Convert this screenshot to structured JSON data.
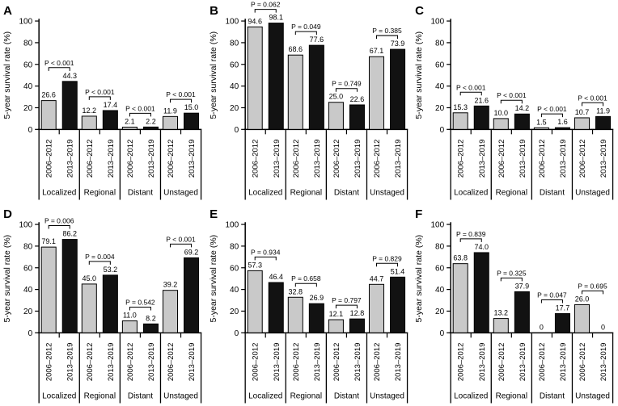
{
  "figure": {
    "ylabel": "5-year survival rate (%)",
    "ylim": [
      0,
      100
    ],
    "yticks": [
      0,
      20,
      40,
      60,
      80,
      100
    ],
    "categories": [
      "Localized",
      "Regional",
      "Distant",
      "Unstaged"
    ],
    "period_labels": [
      "2006–2012",
      "2013–2019"
    ],
    "colors": {
      "bar_2006_2012": "#c9c9c9",
      "bar_2013_2019": "#121212",
      "axis": "#000000",
      "background": "#ffffff"
    }
  },
  "chart_data": [
    {
      "type": "bar",
      "panel_label": "A",
      "ylabel": "5-year survival rate (%)",
      "ylim": [
        0,
        100
      ],
      "categories": [
        "Localized",
        "Regional",
        "Distant",
        "Unstaged"
      ],
      "series": [
        {
          "name": "2006–2012",
          "values": [
            26.6,
            12.2,
            2.1,
            11.9
          ]
        },
        {
          "name": "2013–2019",
          "values": [
            44.3,
            17.4,
            2.2,
            15.0
          ]
        }
      ],
      "value_labels": [
        [
          "26.6",
          "44.3"
        ],
        [
          "12.2",
          "17.4"
        ],
        [
          "2.1",
          "2.2"
        ],
        [
          "11.9",
          "15.0"
        ]
      ],
      "p_values": [
        "P < 0.001",
        "P < 0.001",
        "P < 0.001",
        "P < 0.001"
      ]
    },
    {
      "type": "bar",
      "panel_label": "B",
      "ylabel": "5-year survival rate (%)",
      "ylim": [
        0,
        100
      ],
      "categories": [
        "Localized",
        "Regional",
        "Distant",
        "Unstaged"
      ],
      "series": [
        {
          "name": "2006–2012",
          "values": [
            94.6,
            68.6,
            25.0,
            67.1
          ]
        },
        {
          "name": "2013–2019",
          "values": [
            98.1,
            77.6,
            22.6,
            73.9
          ]
        }
      ],
      "value_labels": [
        [
          "94.6",
          "98.1"
        ],
        [
          "68.6",
          "77.6"
        ],
        [
          "25.0",
          "22.6"
        ],
        [
          "67.1",
          "73.9"
        ]
      ],
      "p_values": [
        "P = 0.062",
        "P = 0.049",
        "P = 0.749",
        "P = 0.385"
      ]
    },
    {
      "type": "bar",
      "panel_label": "C",
      "ylabel": "5-year survival rate (%)",
      "ylim": [
        0,
        100
      ],
      "categories": [
        "Localized",
        "Regional",
        "Distant",
        "Unstaged"
      ],
      "series": [
        {
          "name": "2006–2012",
          "values": [
            15.3,
            10.0,
            1.5,
            10.7
          ]
        },
        {
          "name": "2013–2019",
          "values": [
            21.6,
            14.2,
            1.6,
            11.9
          ]
        }
      ],
      "value_labels": [
        [
          "15.3",
          "21.6"
        ],
        [
          "10.0",
          "14.2"
        ],
        [
          "1.5",
          "1.6"
        ],
        [
          "10.7",
          "11.9"
        ]
      ],
      "p_values": [
        "P < 0.001",
        "P < 0.001",
        "P < 0.001",
        "P < 0.001"
      ]
    },
    {
      "type": "bar",
      "panel_label": "D",
      "ylabel": "5-year survival rate (%)",
      "ylim": [
        0,
        100
      ],
      "categories": [
        "Localized",
        "Regional",
        "Distant",
        "Unstaged"
      ],
      "series": [
        {
          "name": "2006–2012",
          "values": [
            79.1,
            45.0,
            11.0,
            39.2
          ]
        },
        {
          "name": "2013–2019",
          "values": [
            86.2,
            53.2,
            8.2,
            69.2
          ]
        }
      ],
      "value_labels": [
        [
          "79.1",
          "86.2"
        ],
        [
          "45.0",
          "53.2"
        ],
        [
          "11.0",
          "8.2"
        ],
        [
          "39.2",
          "69.2"
        ]
      ],
      "p_values": [
        "P = 0.006",
        "P = 0.004",
        "P = 0.542",
        "P < 0.001"
      ]
    },
    {
      "type": "bar",
      "panel_label": "E",
      "ylabel": "5-year survival rate (%)",
      "ylim": [
        0,
        100
      ],
      "categories": [
        "Localized",
        "Regional",
        "Distant",
        "Unstaged"
      ],
      "series": [
        {
          "name": "2006–2012",
          "values": [
            57.3,
            32.8,
            12.1,
            44.7
          ]
        },
        {
          "name": "2013–2019",
          "values": [
            46.4,
            26.9,
            12.8,
            51.4
          ]
        }
      ],
      "value_labels": [
        [
          "57.3",
          "46.4"
        ],
        [
          "32.8",
          "26.9"
        ],
        [
          "12.1",
          "12.8"
        ],
        [
          "44.7",
          "51.4"
        ]
      ],
      "p_values": [
        "P = 0.934",
        "P = 0.658",
        "P = 0.797",
        "P = 0.829"
      ]
    },
    {
      "type": "bar",
      "panel_label": "F",
      "ylabel": "5-year survival rate (%)",
      "ylim": [
        0,
        100
      ],
      "categories": [
        "Localized",
        "Regional",
        "Distant",
        "Unstaged"
      ],
      "series": [
        {
          "name": "2006–2012",
          "values": [
            63.8,
            13.2,
            0,
            26.0
          ]
        },
        {
          "name": "2013–2019",
          "values": [
            74.0,
            37.9,
            17.7,
            0
          ]
        }
      ],
      "value_labels": [
        [
          "63.8",
          "74.0"
        ],
        [
          "13.2",
          "37.9"
        ],
        [
          "0",
          "17.7"
        ],
        [
          "26.0",
          "0"
        ]
      ],
      "p_values": [
        "P = 0.839",
        "P = 0.325",
        "P = 0.047",
        "P = 0.695"
      ]
    }
  ]
}
